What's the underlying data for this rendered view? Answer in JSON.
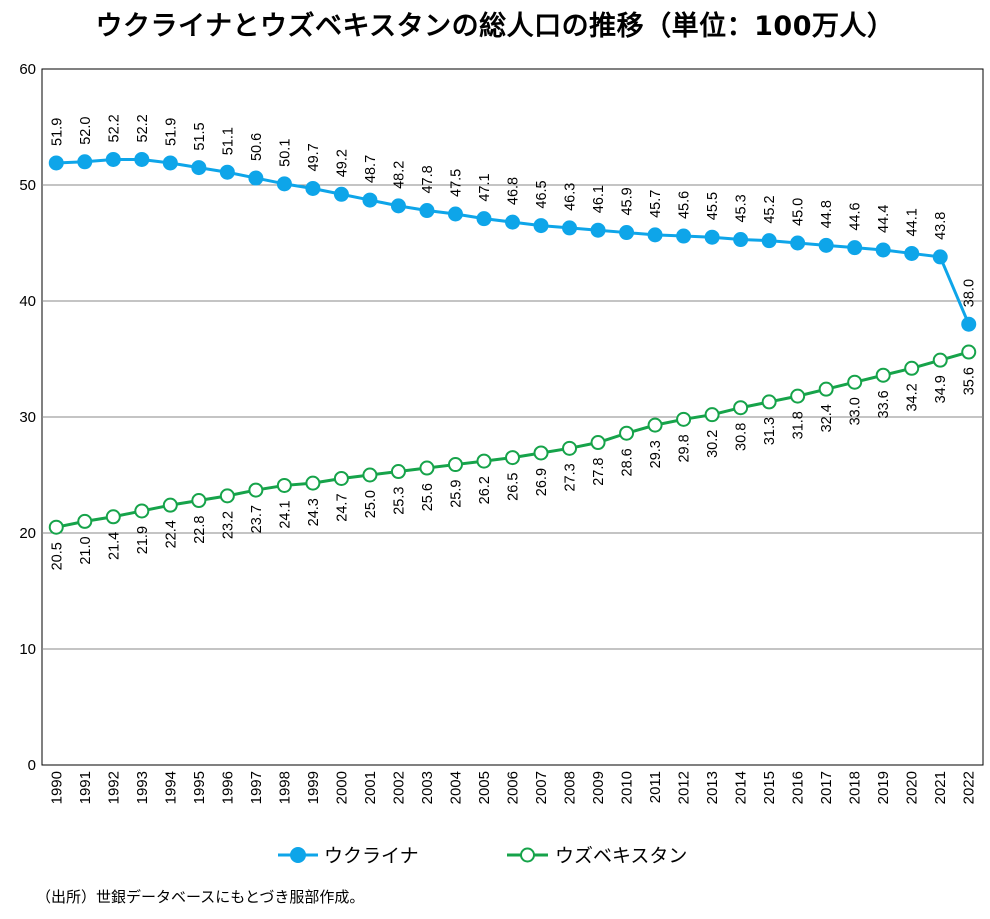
{
  "chart_data": {
    "type": "line",
    "title": "ウクライナとウズベキスタンの総人口の推移（単位：100万人）",
    "x": [
      1990,
      1991,
      1992,
      1993,
      1994,
      1995,
      1996,
      1997,
      1998,
      1999,
      2000,
      2001,
      2002,
      2003,
      2004,
      2005,
      2006,
      2007,
      2008,
      2009,
      2010,
      2011,
      2012,
      2013,
      2014,
      2015,
      2016,
      2017,
      2018,
      2019,
      2020,
      2021,
      2022
    ],
    "series": [
      {
        "name": "ウクライナ",
        "color": "#0ea5e9",
        "marker": "filled-circle",
        "values": [
          51.9,
          52.0,
          52.2,
          52.2,
          51.9,
          51.5,
          51.1,
          50.6,
          50.1,
          49.7,
          49.2,
          48.7,
          48.2,
          47.8,
          47.5,
          47.1,
          46.8,
          46.5,
          46.3,
          46.1,
          45.9,
          45.7,
          45.6,
          45.5,
          45.3,
          45.2,
          45.0,
          44.8,
          44.6,
          44.4,
          44.1,
          43.8,
          38.0
        ]
      },
      {
        "name": "ウズベキスタン",
        "color": "#16a34a",
        "marker": "hollow-circle",
        "values": [
          20.5,
          21.0,
          21.4,
          21.9,
          22.4,
          22.8,
          23.2,
          23.7,
          24.1,
          24.3,
          24.7,
          25.0,
          25.3,
          25.6,
          25.9,
          26.2,
          26.5,
          26.9,
          27.3,
          27.8,
          28.6,
          29.3,
          29.8,
          30.2,
          30.8,
          31.3,
          31.8,
          32.4,
          33.0,
          33.6,
          34.2,
          34.9,
          35.6
        ]
      }
    ],
    "ylim": [
      0,
      60
    ],
    "yticks": [
      0,
      10,
      20,
      30,
      40,
      50,
      60
    ],
    "xlabel": "",
    "ylabel": "",
    "grid": true,
    "legend_position": "bottom-center",
    "source_note": "（出所）世銀データベースにもとづき服部作成。"
  }
}
